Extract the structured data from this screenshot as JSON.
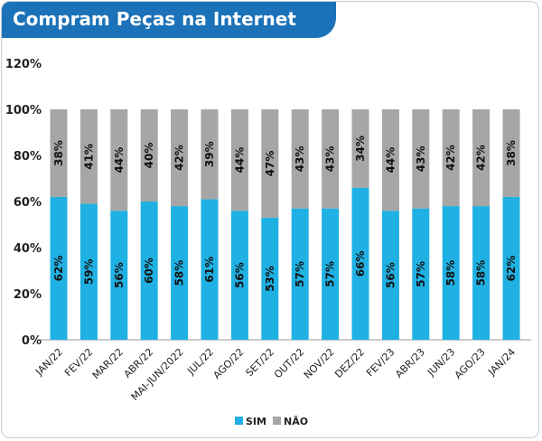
{
  "chart_data": {
    "type": "bar",
    "stacked": true,
    "title": "Compram Peças na Internet",
    "categories": [
      "JAN/22",
      "FEV/22",
      "MAR/22",
      "ABR/22",
      "MAI-JUN/2022",
      "JUL/22",
      "AGO/22",
      "SET/22",
      "OUT/22",
      "NOV/22",
      "DEZ/22",
      "FEV/23",
      "ABR/23",
      "JUN/23",
      "AGO/23",
      "JAN/24"
    ],
    "series": [
      {
        "name": "SIM",
        "color": "#1fb1e3",
        "values": [
          62,
          59,
          56,
          60,
          58,
          61,
          56,
          53,
          57,
          57,
          66,
          56,
          57,
          58,
          58,
          62
        ]
      },
      {
        "name": "NÃO",
        "color": "#a6a6a6",
        "values": [
          38,
          41,
          44,
          40,
          42,
          39,
          44,
          47,
          43,
          43,
          34,
          44,
          43,
          42,
          42,
          38
        ]
      }
    ],
    "ylim": [
      0,
      120
    ],
    "yticks": [
      "0%",
      "20%",
      "40%",
      "60%",
      "80%",
      "100%",
      "120%"
    ],
    "grid": false,
    "legend_position": "bottom-center"
  }
}
